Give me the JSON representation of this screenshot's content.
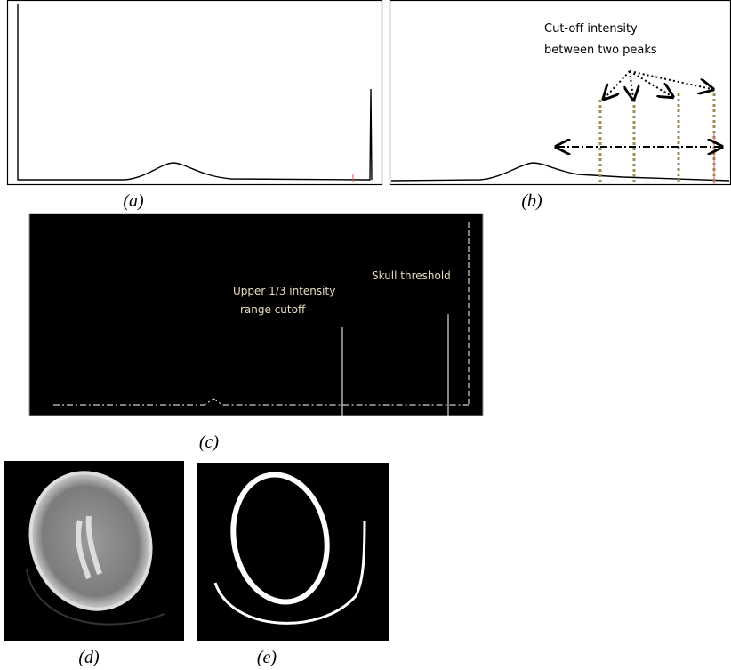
{
  "panels": [
    {
      "label": "(a)"
    },
    {
      "label": "(b)",
      "annotation": [
        "Cut-off intensity",
        "between two peaks"
      ]
    },
    {
      "label": "(c)",
      "annotations": [
        "Skull threshold",
        "Upper 1/3 intensity",
        "range cutoff"
      ]
    },
    {
      "label": "(d)"
    },
    {
      "label": "(e)"
    }
  ]
}
